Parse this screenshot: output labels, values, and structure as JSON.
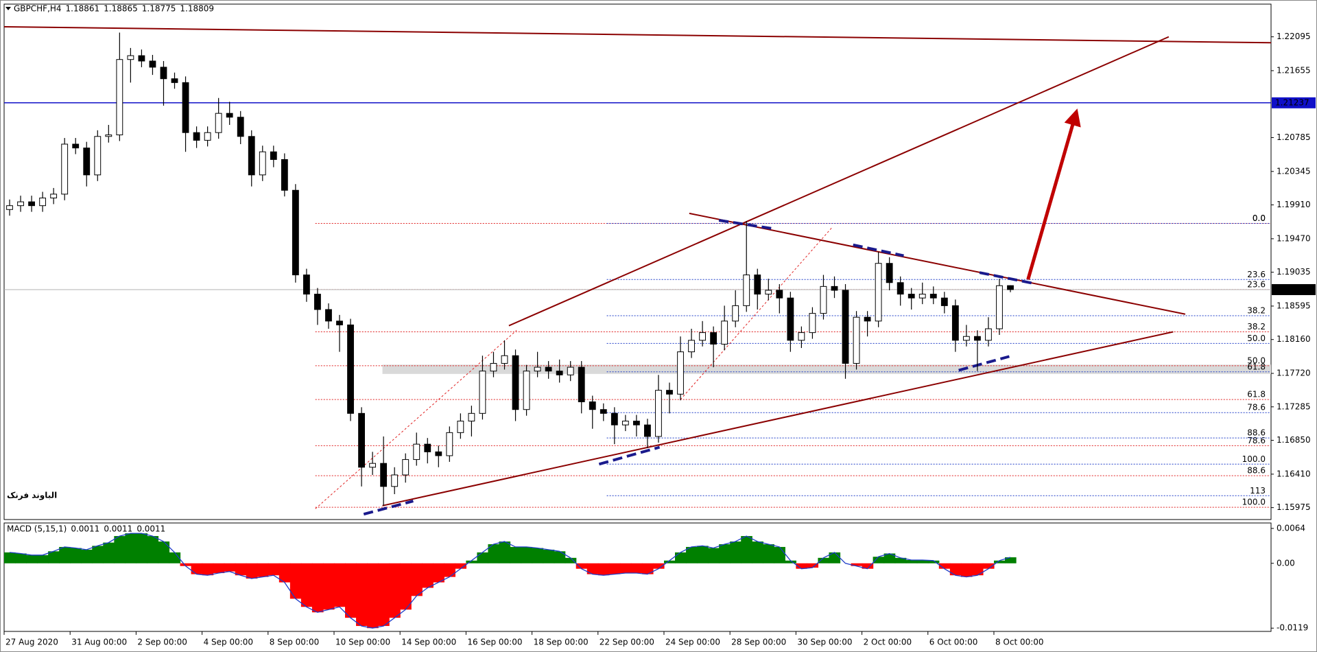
{
  "chart_data": [
    {
      "type": "candlestick",
      "title": "GBPCHF,H4",
      "open": [
        1.1985,
        1.199,
        1.1995,
        1.199,
        1.2,
        1.2005,
        1.207,
        1.2065,
        1.203,
        1.208,
        1.2082,
        1.218,
        1.2185,
        1.2178,
        1.217,
        1.2155,
        1.215,
        1.2085,
        1.2075,
        1.2085,
        1.211,
        1.2105,
        1.208,
        1.203,
        1.206,
        1.205,
        1.201,
        1.19,
        1.1875,
        1.1855,
        1.184,
        1.1835,
        1.172,
        1.165,
        1.1655,
        1.1625,
        1.164,
        1.166,
        1.168,
        1.167,
        1.1665,
        1.1695,
        1.171,
        1.172,
        1.1775,
        1.1785,
        1.1795,
        1.1725,
        1.1775,
        1.178,
        1.1775,
        1.177,
        1.178,
        1.1735,
        1.1725,
        1.172,
        1.1705,
        1.171,
        1.1705,
        1.169,
        1.175,
        1.1745,
        1.18,
        1.1815,
        1.1825,
        1.181,
        1.184,
        1.186,
        1.19,
        1.1875,
        1.188,
        1.187,
        1.1815,
        1.1825,
        1.185,
        1.1885,
        1.188,
        1.1785,
        1.1845,
        1.184,
        1.1915,
        1.189,
        1.1875,
        1.187,
        1.1875,
        1.187,
        1.186,
        1.1815,
        1.182,
        1.1815,
        1.183,
        1.18861
      ],
      "high": [
        1.1998,
        1.2003,
        1.2003,
        1.2008,
        1.2013,
        1.2078,
        1.2078,
        1.2073,
        1.2088,
        1.2095,
        1.2215,
        1.2195,
        1.2193,
        1.2186,
        1.2178,
        1.2163,
        1.2158,
        1.2093,
        1.2093,
        1.213,
        1.2125,
        1.2113,
        1.2088,
        1.2068,
        1.2068,
        1.2058,
        1.2018,
        1.1908,
        1.1883,
        1.1863,
        1.1848,
        1.1843,
        1.1728,
        1.167,
        1.169,
        1.165,
        1.1668,
        1.1695,
        1.1688,
        1.1678,
        1.1703,
        1.172,
        1.173,
        1.1795,
        1.18,
        1.1815,
        1.1803,
        1.1783,
        1.18,
        1.1788,
        1.179,
        1.1788,
        1.1788,
        1.1743,
        1.1733,
        1.1728,
        1.1718,
        1.1718,
        1.1713,
        1.177,
        1.176,
        1.182,
        1.183,
        1.184,
        1.1833,
        1.186,
        1.188,
        1.197,
        1.1908,
        1.1895,
        1.1888,
        1.1878,
        1.1833,
        1.1858,
        1.19,
        1.1898,
        1.1888,
        1.1853,
        1.1853,
        1.193,
        1.1923,
        1.1898,
        1.1883,
        1.189,
        1.1885,
        1.1878,
        1.1868,
        1.1835,
        1.1828,
        1.1845,
        1.1895,
        1.18865
      ],
      "low": [
        1.1977,
        1.1982,
        1.1982,
        1.1982,
        1.1992,
        1.1997,
        1.2057,
        1.2015,
        1.2022,
        1.2072,
        1.2074,
        1.215,
        1.217,
        1.216,
        1.212,
        1.2142,
        1.206,
        1.2065,
        1.2067,
        1.2077,
        1.2095,
        1.207,
        1.2015,
        1.2022,
        1.204,
        1.2002,
        1.189,
        1.1865,
        1.1835,
        1.183,
        1.18,
        1.171,
        1.1625,
        1.164,
        1.16,
        1.1615,
        1.163,
        1.1652,
        1.1655,
        1.165,
        1.1657,
        1.1687,
        1.169,
        1.1712,
        1.1767,
        1.1777,
        1.171,
        1.1717,
        1.1767,
        1.1765,
        1.176,
        1.1762,
        1.172,
        1.17,
        1.171,
        1.168,
        1.1697,
        1.169,
        1.1675,
        1.1682,
        1.172,
        1.1737,
        1.1792,
        1.1807,
        1.178,
        1.1802,
        1.1832,
        1.1852,
        1.1855,
        1.1867,
        1.185,
        1.18,
        1.1805,
        1.1817,
        1.1842,
        1.187,
        1.1765,
        1.1777,
        1.182,
        1.1832,
        1.188,
        1.186,
        1.1855,
        1.1862,
        1.1862,
        1.185,
        1.18,
        1.1807,
        1.1775,
        1.1807,
        1.1822,
        1.18775
      ],
      "close": [
        1.199,
        1.1995,
        1.199,
        1.2,
        1.2005,
        1.207,
        1.2065,
        1.203,
        1.208,
        1.2082,
        1.218,
        1.2185,
        1.2178,
        1.217,
        1.2155,
        1.215,
        1.2085,
        1.2075,
        1.2085,
        1.211,
        1.2105,
        1.208,
        1.203,
        1.206,
        1.205,
        1.201,
        1.19,
        1.1875,
        1.1855,
        1.184,
        1.1835,
        1.172,
        1.165,
        1.1655,
        1.1625,
        1.164,
        1.166,
        1.168,
        1.167,
        1.1665,
        1.1695,
        1.171,
        1.172,
        1.1775,
        1.1785,
        1.1795,
        1.1725,
        1.1775,
        1.178,
        1.1775,
        1.177,
        1.178,
        1.1735,
        1.1725,
        1.172,
        1.1705,
        1.171,
        1.1705,
        1.169,
        1.175,
        1.1745,
        1.18,
        1.1815,
        1.1825,
        1.181,
        1.184,
        1.186,
        1.19,
        1.1875,
        1.188,
        1.187,
        1.1815,
        1.1825,
        1.185,
        1.1885,
        1.188,
        1.1785,
        1.1845,
        1.184,
        1.1915,
        1.189,
        1.1875,
        1.187,
        1.1875,
        1.187,
        1.186,
        1.1815,
        1.182,
        1.1815,
        1.183,
        1.1886,
        1.18809
      ],
      "up_color": "#ffffff",
      "down_color": "#000000",
      "wick_color": "#000000",
      "xlim": [
        -0.5,
        114.7
      ],
      "xticks": [
        {
          "value": -0.5,
          "label": "27 Aug 2020"
        },
        {
          "value": 5.5,
          "label": "31 Aug 00:00"
        },
        {
          "value": 11.5,
          "label": "2 Sep 00:00"
        },
        {
          "value": 17.5,
          "label": "4 Sep 00:00"
        },
        {
          "value": 23.5,
          "label": "8 Sep 00:00"
        },
        {
          "value": 29.5,
          "label": "10 Sep 00:00"
        },
        {
          "value": 35.5,
          "label": "14 Sep 00:00"
        },
        {
          "value": 41.5,
          "label": "16 Sep 00:00"
        },
        {
          "value": 47.5,
          "label": "18 Sep 00:00"
        },
        {
          "value": 53.5,
          "label": "22 Sep 00:00"
        },
        {
          "value": 59.5,
          "label": "24 Sep 00:00"
        },
        {
          "value": 65.5,
          "label": "28 Sep 00:00"
        },
        {
          "value": 71.5,
          "label": "30 Sep 00:00"
        },
        {
          "value": 77.5,
          "label": "2 Oct 00:00"
        },
        {
          "value": 83.5,
          "label": "6 Oct 00:00"
        },
        {
          "value": 89.5,
          "label": "8 Oct 00:00"
        }
      ],
      "ylim": [
        1.1582,
        1.2252
      ],
      "yticks": [
        1.22095,
        1.21655,
        1.20785,
        1.20345,
        {
          "value": 1.1991,
          "label": "1.19910"
        },
        {
          "value": 1.1947,
          "label": "1.19470"
        },
        1.19035,
        1.18595,
        {
          "value": 1.1816,
          "label": "1.18160"
        },
        {
          "value": 1.1772,
          "label": "1.17720"
        },
        1.17285,
        {
          "value": 1.1685,
          "label": "1.16850"
        },
        {
          "value": 1.1641,
          "label": "1.16410"
        },
        1.15975
      ],
      "hlines": [
        {
          "value": 1.21237,
          "color": "#1010c8"
        }
      ],
      "zone": {
        "x": [
          33.9,
          114.7
        ],
        "y": [
          1.17713,
          1.17833
        ],
        "color": "#d9d9d9"
      },
      "fibonacci": [
        {
          "color": "#e02020",
          "start": 27.8,
          "levels": [
            {
              "label": "0.0",
              "price": 1.1967
            },
            {
              "label": "23.6",
              "price": 1.1881
            },
            {
              "label": "38.2",
              "price": 1.1826
            },
            {
              "label": "50.0",
              "price": 1.1782
            },
            {
              "label": "61.8",
              "price": 1.1738
            },
            {
              "label": "78.6",
              "price": 1.1678
            },
            {
              "label": "88.6",
              "price": 1.1639
            },
            {
              "label": "100.0",
              "price": 1.1598
            }
          ]
        },
        {
          "color": "#1e3cc8",
          "start": 54.3,
          "levels": [
            {
              "label": "0.0",
              "price": 1.1967
            },
            {
              "label": "23.6",
              "price": 1.1894
            },
            {
              "label": "38.2",
              "price": 1.1847
            },
            {
              "label": "50.0",
              "price": 1.1811
            },
            {
              "label": "61.8",
              "price": 1.1774
            },
            {
              "label": "78.6",
              "price": 1.1721
            },
            {
              "label": "88.6",
              "price": 1.1688
            },
            {
              "label": "100.0",
              "price": 1.1654
            },
            {
              "label": "113",
              "price": 1.1613
            }
          ]
        }
      ],
      "trendlines": [
        {
          "x": [
            -0.5,
            114.7
          ],
          "y": [
            1.22226,
            1.22018
          ],
          "color": "#8b0000",
          "style": "solid"
        },
        {
          "x": [
            45.4,
            105.4
          ],
          "y": [
            1.1834,
            1.22095
          ],
          "color": "#8b0000",
          "style": "solid"
        },
        {
          "x": [
            33.9,
            105.8
          ],
          "y": [
            1.16,
            1.1826
          ],
          "color": "#8b0000",
          "style": "solid"
        },
        {
          "x": [
            61.8,
            106.9
          ],
          "y": [
            1.198,
            1.1849
          ],
          "color": "#8b0000",
          "style": "solid"
        },
        {
          "x": [
            27.8,
            46.1
          ],
          "y": [
            1.1596,
            1.1828
          ],
          "color": "#e02020",
          "style": "dotted"
        },
        {
          "x": [
            61.0,
            74.8
          ],
          "y": [
            1.1738,
            1.1962
          ],
          "color": "#e02020",
          "style": "dotted"
        },
        {
          "x": [
            32.2,
            36.7
          ],
          "y": [
            1.1589,
            1.1606
          ],
          "color": "#1a1a8c",
          "style": "dashed"
        },
        {
          "x": [
            53.6,
            59.1
          ],
          "y": [
            1.1654,
            1.1676
          ],
          "color": "#1a1a8c",
          "style": "dashed"
        },
        {
          "x": [
            64.5,
            69.5
          ],
          "y": [
            1.1971,
            1.196
          ],
          "color": "#1a1a8c",
          "style": "dashed"
        },
        {
          "x": [
            76.7,
            81.3
          ],
          "y": [
            1.1939,
            1.1925
          ],
          "color": "#1a1a8c",
          "style": "dashed"
        },
        {
          "x": [
            88.2,
            93.1
          ],
          "y": [
            1.1903,
            1.1889
          ],
          "color": "#1a1a8c",
          "style": "dashed"
        },
        {
          "x": [
            86.3,
            90.9
          ],
          "y": [
            1.1776,
            1.1794
          ],
          "color": "#1a1a8c",
          "style": "dashed"
        }
      ],
      "arrow": {
        "x": [
          92.6,
          97.0
        ],
        "y": [
          1.1894,
          1.2112
        ],
        "color": "#c00000"
      },
      "annotation": "الباوند فرنک",
      "annotation_color": "#e00000"
    },
    {
      "type": "bar",
      "title": "MACD (5,15,1)",
      "readouts": [
        0.0011,
        0.0011,
        0.0011
      ],
      "values": [
        0.002,
        0.0018,
        0.0015,
        0.0015,
        0.0022,
        0.003,
        0.0028,
        0.0025,
        0.0032,
        0.0038,
        0.005,
        0.0055,
        0.0055,
        0.005,
        0.004,
        0.002,
        -0.0005,
        -0.002,
        -0.0022,
        -0.0018,
        -0.0015,
        -0.0022,
        -0.0028,
        -0.0025,
        -0.0022,
        -0.0035,
        -0.0065,
        -0.008,
        -0.009,
        -0.0085,
        -0.008,
        -0.01,
        -0.0115,
        -0.0119,
        -0.0115,
        -0.01,
        -0.0085,
        -0.006,
        -0.0045,
        -0.0035,
        -0.0025,
        -0.001,
        0.0005,
        0.002,
        0.0035,
        0.004,
        0.003,
        0.003,
        0.0028,
        0.0025,
        0.0022,
        0.001,
        -0.001,
        -0.002,
        -0.0022,
        -0.002,
        -0.0018,
        -0.0018,
        -0.002,
        -0.001,
        0.0005,
        0.002,
        0.003,
        0.0032,
        0.0028,
        0.0035,
        0.004,
        0.005,
        0.004,
        0.0035,
        0.003,
        0.0005,
        -0.001,
        -0.0008,
        0.001,
        0.002,
        0.0,
        -0.0005,
        -0.001,
        0.0012,
        0.0018,
        0.001,
        0.0006,
        0.0006,
        0.0005,
        -0.001,
        -0.0022,
        -0.0025,
        -0.0022,
        -0.001,
        0.0005,
        0.0011
      ],
      "positive_color": "#008000",
      "negative_color": "#ff0000",
      "line_color": "#1e3cc8",
      "ylim": [
        -0.0125,
        0.0074
      ],
      "yticks": [
        0.0064,
        {
          "value": 0,
          "label": "0.00"
        },
        -0.0119
      ]
    }
  ]
}
